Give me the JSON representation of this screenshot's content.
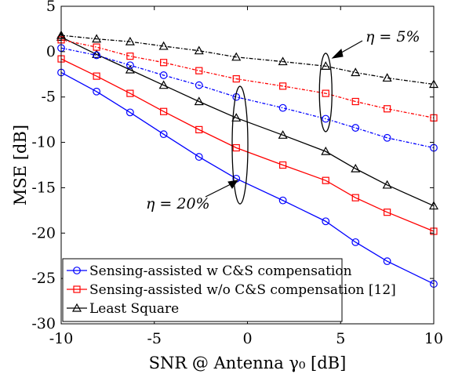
{
  "chart_data": {
    "type": "line",
    "xlabel": "SNR @ Antenna γ₀ [dB]",
    "ylabel": "MSE [dB]",
    "xlim": [
      -10,
      10
    ],
    "ylim": [
      -30,
      5
    ],
    "xticks": [
      "-10",
      "-5",
      "0",
      "5",
      "10"
    ],
    "yticks": [
      "5",
      "0",
      "-5",
      "-10",
      "-15",
      "-20",
      "-25",
      "-30"
    ],
    "x": [
      -10,
      -8.1,
      -6.3,
      -4.5,
      -2.6,
      -0.6,
      1.9,
      4.2,
      5.8,
      7.5,
      10
    ],
    "series": [
      {
        "name": "Sensing-assisted w C&S compensation",
        "group": "eta20",
        "color": "#0000ff",
        "marker": "circle",
        "values": [
          -2.3,
          -4.4,
          -6.7,
          -9.1,
          -11.6,
          -14.0,
          -16.4,
          -18.7,
          -21.0,
          -23.1,
          -25.6
        ]
      },
      {
        "name": "Sensing-assisted w/o C&S compensation [12]",
        "group": "eta20",
        "color": "#ff0000",
        "marker": "square",
        "values": [
          -0.8,
          -2.7,
          -4.6,
          -6.6,
          -8.6,
          -10.6,
          -12.5,
          -14.2,
          -16.1,
          -17.7,
          -19.8
        ]
      },
      {
        "name": "Least Square",
        "group": "eta20",
        "color": "#000000",
        "marker": "triangle",
        "values": [
          1.6,
          -0.3,
          -2.0,
          -3.7,
          -5.5,
          -7.3,
          -9.2,
          -11.0,
          -12.9,
          -14.7,
          -17.0
        ]
      },
      {
        "name": "Sensing-assisted w C&S compensation",
        "group": "eta5",
        "color": "#0000ff",
        "marker": "circle",
        "values": [
          0.4,
          -0.4,
          -1.5,
          -2.6,
          -3.7,
          -5.0,
          -6.2,
          -7.4,
          -8.4,
          -9.5,
          -10.6
        ]
      },
      {
        "name": "Sensing-assisted w/o C&S compensation [12]",
        "group": "eta5",
        "color": "#ff0000",
        "marker": "square",
        "values": [
          1.3,
          0.5,
          -0.5,
          -1.2,
          -2.1,
          -3.0,
          -3.8,
          -4.6,
          -5.5,
          -6.3,
          -7.3
        ]
      },
      {
        "name": "Least Square",
        "group": "eta5",
        "color": "#000000",
        "marker": "triangle",
        "values": [
          1.8,
          1.4,
          1.1,
          0.6,
          0.1,
          -0.6,
          -1.1,
          -1.6,
          -2.3,
          -2.9,
          -3.6
        ]
      }
    ],
    "legend": {
      "placement": "bottom-left",
      "entries": [
        {
          "label": "Sensing-assisted w C&S compensation",
          "color": "#0000ff",
          "marker": "circle"
        },
        {
          "label": "Sensing-assisted w/o C&S compensation [12]",
          "color": "#ff0000",
          "marker": "square"
        },
        {
          "label": "Least Square",
          "color": "#000000",
          "marker": "triangle"
        }
      ]
    },
    "annotations": [
      {
        "text": "η = 5%"
      },
      {
        "text": "η = 20%"
      }
    ],
    "grid": false
  }
}
